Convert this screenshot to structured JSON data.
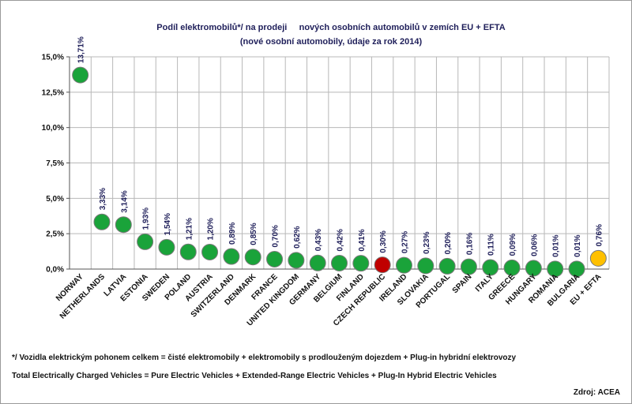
{
  "chart_data": {
    "type": "scatter",
    "title_line1": "Podíl elektromobilů*/ na prodeji     nových osobních automobilů v zemích EU + EFTA",
    "title_line2": "(nové osobní automobily, údaje za rok 2014)",
    "categories": [
      "NORWAY",
      "NETHERLANDS",
      "LATVIA",
      "ESTONIA",
      "SWEDEN",
      "POLAND",
      "AUSTRIA",
      "SWITZERLAND",
      "DENMARK",
      "FRANCE",
      "UNITED KINGDOM",
      "GERMANY",
      "BELGIUM",
      "FINLAND",
      "CZECH REPUBLIC",
      "IRELAND",
      "SLOVAKIA",
      "PORTUGAL",
      "SPAIN",
      "ITALY",
      "GREECE",
      "HUNGARY",
      "ROMANIA",
      "BULGARIA",
      "EU + EFTA"
    ],
    "values": [
      13.71,
      3.33,
      3.14,
      1.93,
      1.54,
      1.21,
      1.2,
      0.89,
      0.85,
      0.7,
      0.62,
      0.43,
      0.42,
      0.41,
      0.3,
      0.27,
      0.23,
      0.2,
      0.16,
      0.11,
      0.09,
      0.06,
      0.01,
      0.01,
      0.76
    ],
    "value_labels": [
      "13,71%",
      "3,33%",
      "3,14%",
      "1,93%",
      "1,54%",
      "1,21%",
      "1,20%",
      "0,89%",
      "0,85%",
      "0,70%",
      "0,62%",
      "0,43%",
      "0,42%",
      "0,41%",
      "0,30%",
      "0,27%",
      "0,23%",
      "0,20%",
      "0,16%",
      "0,11%",
      "0,09%",
      "0,06%",
      "0,01%",
      "0,01%",
      "0,76%"
    ],
    "y_ticks": [
      0,
      2.5,
      5,
      7.5,
      10,
      12.5,
      15
    ],
    "y_tick_labels": [
      "0,0%",
      "2,5%",
      "5,0%",
      "7,5%",
      "10,0%",
      "12,5%",
      "15,0%"
    ],
    "ylim": [
      0,
      15
    ],
    "grid": true,
    "marker_colors": {
      "default": "#1aa33a",
      "CZECH REPUBLIC": "#c00000",
      "EU + EFTA": "#ffc000"
    },
    "label_colors": {
      "default": "#1f1f5a",
      "CZECH REPUBLIC": "#c00000"
    }
  },
  "footnotes": {
    "cz": "*/ Vozidla elektrickým pohonem celkem = čisté elektromobily + elektromobily s prodlouženým dojezdem + Plug-in hybridní elektrovozy",
    "en": "Total Electrically Charged Vehicles = Pure Electric Vehicles + Extended-Range Electric Vehicles + Plug-In Hybrid Electric Vehicles"
  },
  "source": "Zdroj: ACEA"
}
